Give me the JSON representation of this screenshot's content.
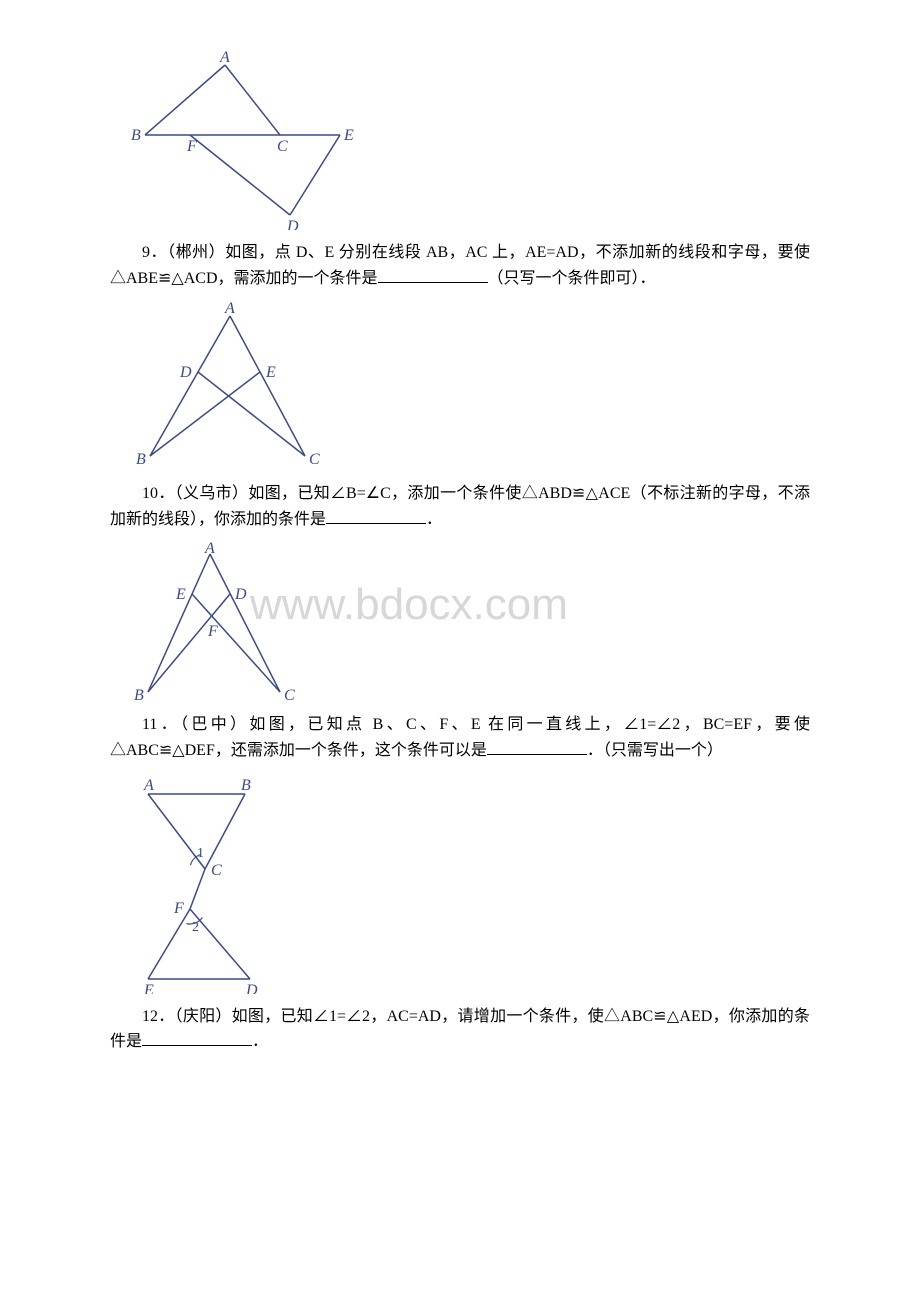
{
  "watermark": {
    "text": "www.bdocx.com"
  },
  "fig8": {
    "labels": {
      "A": "A",
      "B": "B",
      "C": "C",
      "D": "D",
      "E": "E",
      "F": "F"
    },
    "stroke": "#3a4a8a",
    "label_color": "#3a4a8a",
    "label_font": "italic 16px serif"
  },
  "q9": {
    "text_a": "9．（郴州）如图，点 D、E 分别在线段 AB，AC 上，AE=AD，不添加新的线段",
    "text_b": "和字母，要使△ABE≌△ACD，需添加的一个条件是",
    "text_c": "（只写一个条件即可",
    "text_d": "）．"
  },
  "fig9": {
    "labels": {
      "A": "A",
      "B": "B",
      "C": "C",
      "D": "D",
      "E": "E"
    },
    "stroke": "#3a4a8a",
    "label_color": "#3a4a8a",
    "label_font": "italic 16px serif"
  },
  "q10": {
    "text_a": "10．（义乌市）如图，已知∠B=∠C，添加一个条件使△ABD≌△ACE（不标注新的",
    "text_b": "字母，不添加新的线段），你添加的条件是",
    "text_c": "．"
  },
  "fig10": {
    "labels": {
      "A": "A",
      "B": "B",
      "C": "C",
      "D": "D",
      "E": "E",
      "F": "F"
    },
    "stroke": "#3a4a8a",
    "label_color": "#3a4a8a",
    "label_font": "italic 16px serif"
  },
  "q11": {
    "text_a": "11．（巴中）如图，已知点 B、C、F、E 在同一直线上，∠1=∠2，BC=EF，要使",
    "text_b": "△ABC≌△DEF，还需添加一个条件，这个条件可以是",
    "text_c": "．（只需写出一个",
    "text_d": "）"
  },
  "fig11": {
    "labels": {
      "A": "A",
      "B": "B",
      "C": "C",
      "D": "D",
      "E": "E",
      "F": "F",
      "one": "1",
      "two": "2"
    },
    "stroke": "#3a4a8a",
    "label_color": "#3a4a8a",
    "label_font": "italic 16px serif",
    "num_font": "14px serif"
  },
  "q12": {
    "text_a": "12．（庆阳）如图，已知∠1=∠2，AC=AD，请增加一个条件，使△ABC≌△AED",
    "text_b": "，你添加的条件是",
    "text_c": "．"
  }
}
